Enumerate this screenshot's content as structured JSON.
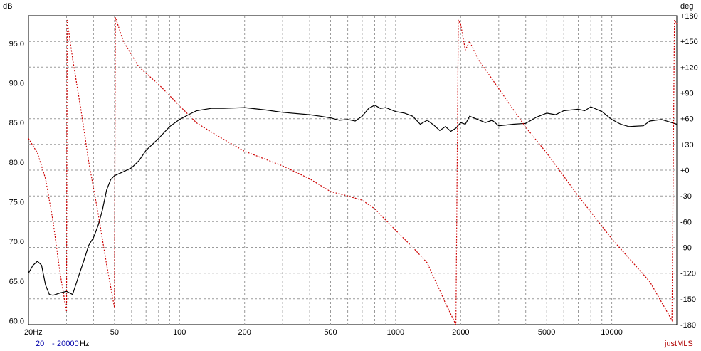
{
  "chart_data": {
    "type": "line",
    "x_scale": "log",
    "xlim": [
      20,
      20000
    ],
    "y_left_unit": "dB",
    "y_right_unit": "deg",
    "ylim_left": [
      59.5,
      98.5
    ],
    "ylim_right": [
      -180,
      180
    ],
    "x_tick_labels": [
      {
        "value": 20,
        "label": "20Hz"
      },
      {
        "value": 50,
        "label": "50"
      },
      {
        "value": 100,
        "label": "100"
      },
      {
        "value": 200,
        "label": "200"
      },
      {
        "value": 500,
        "label": "500"
      },
      {
        "value": 1000,
        "label": "1000"
      },
      {
        "value": 2000,
        "label": "2000"
      },
      {
        "value": 5000,
        "label": "5000"
      },
      {
        "value": 10000,
        "label": "10000"
      }
    ],
    "y_left_ticks": [
      "60.0",
      "65.0",
      "70.0",
      "75.0",
      "80.0",
      "85.0",
      "90.0",
      "95.0"
    ],
    "y_right_ticks": [
      "+180",
      "+150",
      "+120",
      "+90",
      "+60",
      "+30",
      "+0",
      "-30",
      "-60",
      "-90",
      "-120",
      "-150",
      "-180"
    ],
    "grid": true,
    "series": [
      {
        "axis": "left",
        "color": "#000000",
        "style": "solid",
        "points": [
          [
            20,
            66
          ],
          [
            21,
            67
          ],
          [
            22,
            67.5
          ],
          [
            23,
            67
          ],
          [
            24,
            64.5
          ],
          [
            25,
            63.3
          ],
          [
            26,
            63.2
          ],
          [
            28,
            63.5
          ],
          [
            30,
            63.7
          ],
          [
            32,
            63.3
          ],
          [
            34,
            65.5
          ],
          [
            36,
            67.5
          ],
          [
            38,
            69.5
          ],
          [
            40,
            70.5
          ],
          [
            42,
            72
          ],
          [
            44,
            74
          ],
          [
            46,
            76.5
          ],
          [
            48,
            77.8
          ],
          [
            50,
            78.3
          ],
          [
            55,
            78.8
          ],
          [
            60,
            79.3
          ],
          [
            65,
            80.2
          ],
          [
            70,
            81.5
          ],
          [
            80,
            83
          ],
          [
            90,
            84.5
          ],
          [
            100,
            85.4
          ],
          [
            110,
            86
          ],
          [
            120,
            86.5
          ],
          [
            140,
            86.8
          ],
          [
            160,
            86.8
          ],
          [
            200,
            86.9
          ],
          [
            250,
            86.6
          ],
          [
            300,
            86.3
          ],
          [
            400,
            86
          ],
          [
            450,
            85.8
          ],
          [
            500,
            85.6
          ],
          [
            550,
            85.3
          ],
          [
            600,
            85.4
          ],
          [
            650,
            85.2
          ],
          [
            700,
            85.8
          ],
          [
            750,
            86.8
          ],
          [
            800,
            87.2
          ],
          [
            850,
            86.8
          ],
          [
            900,
            86.9
          ],
          [
            1000,
            86.4
          ],
          [
            1100,
            86.2
          ],
          [
            1200,
            85.8
          ],
          [
            1300,
            84.8
          ],
          [
            1400,
            85.3
          ],
          [
            1500,
            84.7
          ],
          [
            1600,
            84
          ],
          [
            1700,
            84.5
          ],
          [
            1800,
            83.9
          ],
          [
            1900,
            84.3
          ],
          [
            2000,
            85
          ],
          [
            2100,
            84.8
          ],
          [
            2200,
            85.8
          ],
          [
            2400,
            85.4
          ],
          [
            2600,
            85
          ],
          [
            2800,
            85.3
          ],
          [
            3000,
            84.6
          ],
          [
            3500,
            84.8
          ],
          [
            4000,
            84.9
          ],
          [
            4500,
            85.7
          ],
          [
            5000,
            86.2
          ],
          [
            5500,
            86
          ],
          [
            6000,
            86.5
          ],
          [
            7000,
            86.7
          ],
          [
            7500,
            86.5
          ],
          [
            8000,
            87
          ],
          [
            9000,
            86.4
          ],
          [
            10000,
            85.4
          ],
          [
            11000,
            84.8
          ],
          [
            12000,
            84.5
          ],
          [
            14000,
            84.6
          ],
          [
            15000,
            85.2
          ],
          [
            17000,
            85.4
          ],
          [
            20000,
            84.8
          ]
        ]
      },
      {
        "axis": "right",
        "color": "#cc0000",
        "style": "dotted",
        "points": [
          [
            20,
            37
          ],
          [
            22,
            20
          ],
          [
            24,
            -10
          ],
          [
            26,
            -60
          ],
          [
            28,
            -120
          ],
          [
            30,
            -165
          ],
          [
            30.2,
            175
          ],
          [
            32,
            130
          ],
          [
            35,
            70
          ],
          [
            38,
            10
          ],
          [
            42,
            -50
          ],
          [
            46,
            -110
          ],
          [
            50,
            -160
          ],
          [
            50.5,
            178
          ],
          [
            55,
            150
          ],
          [
            65,
            120
          ],
          [
            80,
            100
          ],
          [
            100,
            75
          ],
          [
            120,
            55
          ],
          [
            150,
            40
          ],
          [
            200,
            22
          ],
          [
            300,
            5
          ],
          [
            400,
            -10
          ],
          [
            500,
            -25
          ],
          [
            600,
            -30
          ],
          [
            700,
            -35
          ],
          [
            800,
            -45
          ],
          [
            1000,
            -70
          ],
          [
            1200,
            -90
          ],
          [
            1400,
            -108
          ],
          [
            1600,
            -140
          ],
          [
            1700,
            -155
          ],
          [
            1900,
            -180
          ],
          [
            1950,
            175
          ],
          [
            2000,
            170
          ],
          [
            2100,
            140
          ],
          [
            2200,
            150
          ],
          [
            2400,
            130
          ],
          [
            3000,
            95
          ],
          [
            4000,
            50
          ],
          [
            5000,
            20
          ],
          [
            7000,
            -30
          ],
          [
            10000,
            -80
          ],
          [
            15000,
            -130
          ],
          [
            19000,
            -175
          ],
          [
            19500,
            175
          ],
          [
            20000,
            170
          ]
        ]
      }
    ]
  },
  "footer": {
    "range_start": "20",
    "range_sep": "-",
    "range_end": "20000",
    "range_unit": "Hz",
    "brand": "justMLS"
  }
}
